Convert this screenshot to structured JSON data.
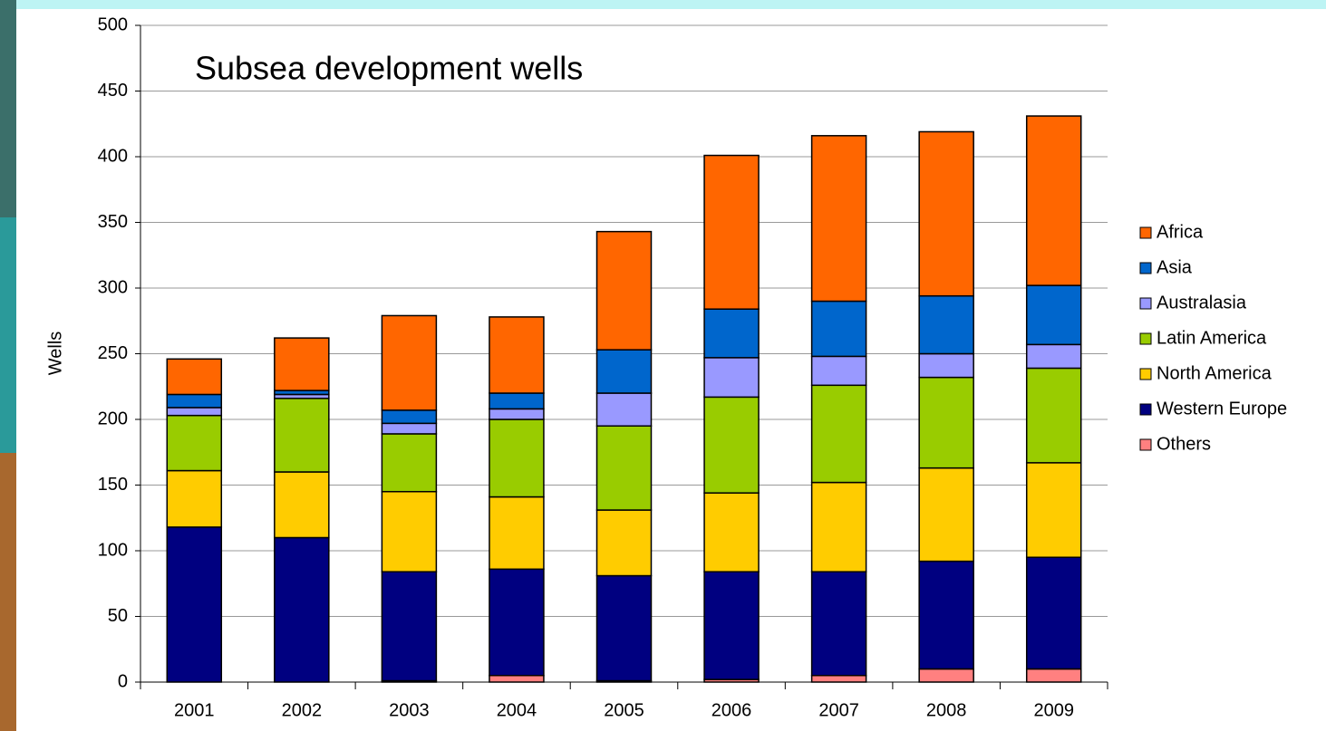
{
  "chart_data": {
    "type": "stacked_bar",
    "title": "Subsea development wells",
    "y_label": "Wells",
    "categories": [
      "2001",
      "2002",
      "2003",
      "2004",
      "2005",
      "2006",
      "2007",
      "2008",
      "2009"
    ],
    "series": [
      {
        "name": "Africa",
        "color": "#ff6600",
        "values": [
          27,
          40,
          72,
          58,
          90,
          117,
          126,
          125,
          129
        ]
      },
      {
        "name": "Asia",
        "color": "#0066cc",
        "values": [
          10,
          3,
          10,
          12,
          33,
          37,
          42,
          44,
          45
        ]
      },
      {
        "name": "Australasia",
        "color": "#9999ff",
        "values": [
          6,
          3,
          8,
          8,
          25,
          30,
          22,
          18,
          18
        ]
      },
      {
        "name": "Latin America",
        "color": "#99cc00",
        "values": [
          42,
          56,
          44,
          59,
          64,
          73,
          74,
          69,
          72
        ]
      },
      {
        "name": "North America",
        "color": "#ffcc00",
        "values": [
          43,
          50,
          61,
          55,
          50,
          60,
          68,
          71,
          72
        ]
      },
      {
        "name": "Western Europe",
        "color": "#000080",
        "values": [
          118,
          110,
          83,
          81,
          80,
          82,
          79,
          82,
          85
        ]
      },
      {
        "name": "Others",
        "color": "#ff8080",
        "values": [
          0,
          0,
          1,
          5,
          1,
          2,
          5,
          10,
          10
        ]
      }
    ],
    "ylim": [
      0,
      500
    ],
    "yticks": [
      0,
      50,
      100,
      150,
      200,
      250,
      300,
      350,
      400,
      450,
      500
    ],
    "grid": true
  }
}
